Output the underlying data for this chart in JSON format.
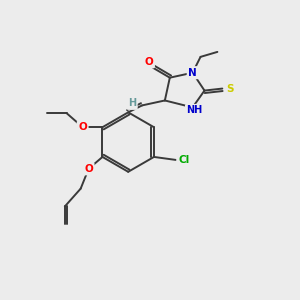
{
  "bg_color": "#ececec",
  "bond_color": "#3a3a3a",
  "atom_colors": {
    "O": "#ff0000",
    "N": "#0000cc",
    "S": "#cccc00",
    "Cl": "#00aa00",
    "C": "#3a3a3a",
    "H": "#669999"
  },
  "figsize": [
    3.0,
    3.0
  ],
  "dpi": 100
}
